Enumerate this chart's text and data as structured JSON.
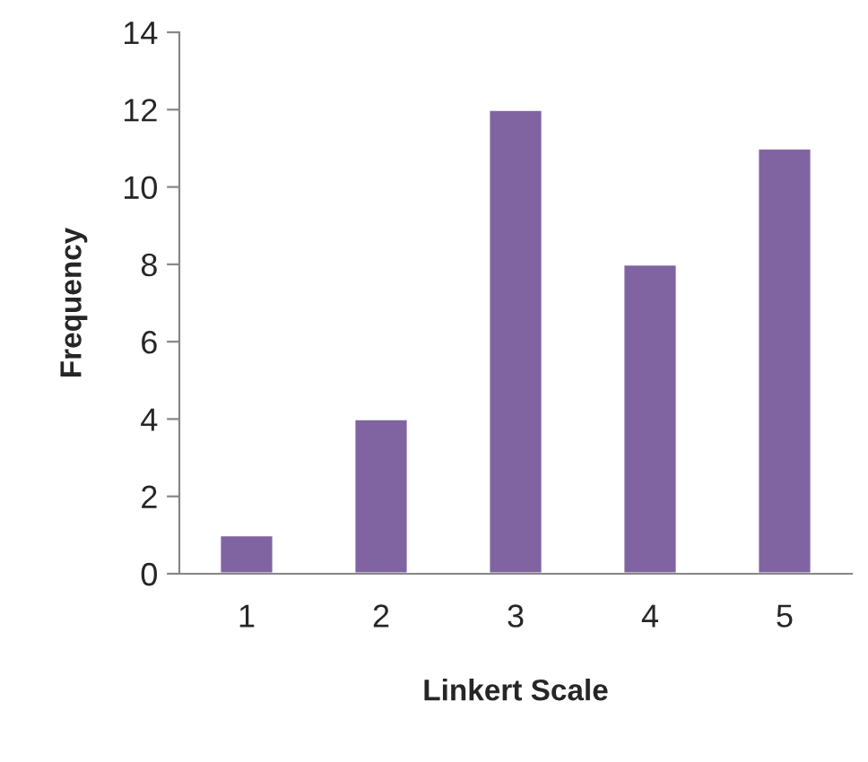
{
  "chart_data": {
    "type": "bar",
    "xlabel": "Linkert Scale",
    "ylabel": "Frequency",
    "categories": [
      "1",
      "2",
      "3",
      "4",
      "5"
    ],
    "series": [
      {
        "color": "#8064a2",
        "values": [
          1,
          4,
          12,
          8,
          11
        ]
      }
    ],
    "ylim": [
      0,
      14
    ],
    "yticks": [
      0,
      2,
      4,
      6,
      8,
      10,
      12,
      14
    ]
  }
}
